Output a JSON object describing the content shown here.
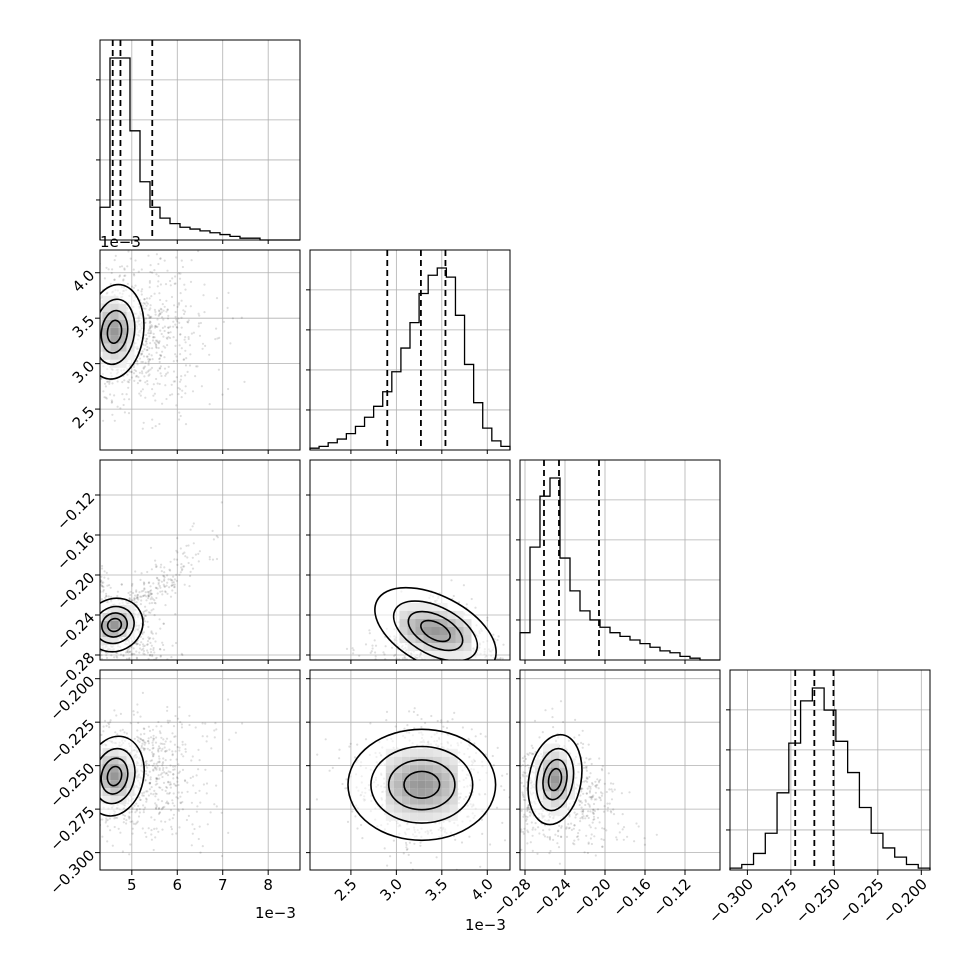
{
  "chart_data": {
    "type": "corner",
    "grid": true,
    "params": [
      {
        "range": [
          0.0043,
          0.0087
        ],
        "ticks": [
          0.005,
          0.006,
          0.007,
          0.008
        ],
        "tick_labels": [
          "5",
          "6",
          "7",
          "8"
        ],
        "offset_label": "1e−3",
        "quantiles": [
          0.00458,
          0.00475,
          0.00545
        ]
      },
      {
        "range": [
          0.00205,
          0.00425
        ],
        "ticks": [
          0.0025,
          0.003,
          0.0035,
          0.004
        ],
        "tick_labels": [
          "2.5",
          "3.0",
          "3.5",
          "4.0"
        ],
        "offset_label": "1e−3",
        "quantiles": [
          0.0029,
          0.00327,
          0.00354
        ]
      },
      {
        "range": [
          -0.285,
          -0.085
        ],
        "ticks": [
          -0.28,
          -0.24,
          -0.2,
          -0.16,
          -0.12
        ],
        "tick_labels": [
          "−0.28",
          "−0.24",
          "−0.20",
          "−0.16",
          "−0.12"
        ],
        "offset_label": "",
        "quantiles": [
          -0.261,
          -0.246,
          -0.206
        ]
      },
      {
        "range": [
          -0.31,
          -0.195
        ],
        "ticks": [
          -0.3,
          -0.275,
          -0.25,
          -0.225,
          -0.2
        ],
        "tick_labels": [
          "−0.300",
          "−0.275",
          "−0.250",
          "−0.225",
          "−0.200"
        ],
        "offset_label": "",
        "quantiles": [
          -0.2725,
          -0.2615,
          -0.2505
        ]
      }
    ],
    "histograms": [
      [
        0.18,
        1.0,
        1.0,
        0.6,
        0.32,
        0.18,
        0.12,
        0.09,
        0.07,
        0.06,
        0.05,
        0.04,
        0.03,
        0.02,
        0.01,
        0.01,
        0.0,
        0.0,
        0.0,
        0.0
      ],
      [
        0.01,
        0.02,
        0.04,
        0.06,
        0.09,
        0.13,
        0.18,
        0.24,
        0.32,
        0.43,
        0.56,
        0.7,
        0.86,
        0.96,
        1.0,
        0.95,
        0.74,
        0.47,
        0.26,
        0.12,
        0.05,
        0.02
      ],
      [
        0.15,
        0.62,
        0.9,
        1.0,
        0.56,
        0.38,
        0.27,
        0.22,
        0.18,
        0.15,
        0.13,
        0.11,
        0.09,
        0.07,
        0.05,
        0.04,
        0.02,
        0.01,
        0.0,
        0.0
      ],
      [
        0.01,
        0.03,
        0.09,
        0.2,
        0.42,
        0.69,
        0.92,
        0.99,
        0.87,
        0.7,
        0.53,
        0.34,
        0.2,
        0.12,
        0.07,
        0.03,
        0.01
      ]
    ],
    "pairs": [
      {
        "row": 1,
        "col": 0,
        "peak": [
          0.00462,
          0.00335
        ],
        "spread": [
          0.00022,
          0.00018
        ],
        "corr": -0.15,
        "scatter_sd": [
          0.0009,
          0.00038
        ],
        "scatter_corr": -0.35,
        "levels": [
          0.33,
          0.56,
          0.75,
          0.93
        ]
      },
      {
        "row": 2,
        "col": 0,
        "peak": [
          0.00462,
          -0.25
        ],
        "spread": [
          0.00022,
          0.009
        ],
        "corr": 0.55,
        "scatter_sd": [
          0.00095,
          0.038
        ],
        "scatter_corr": 0.92,
        "levels": [
          0.33,
          0.56,
          0.75,
          0.93
        ]
      },
      {
        "row": 2,
        "col": 1,
        "peak": [
          0.00343,
          -0.256
        ],
        "spread": [
          0.00025,
          0.012
        ],
        "corr": -0.55,
        "scatter_sd": [
          0.00042,
          0.03
        ],
        "scatter_corr": -0.75,
        "levels": [
          0.33,
          0.56,
          0.75,
          0.93
        ]
      },
      {
        "row": 3,
        "col": 0,
        "peak": [
          0.00462,
          -0.256
        ],
        "spread": [
          0.00022,
          0.008
        ],
        "corr": -0.25,
        "scatter_sd": [
          0.0009,
          0.017
        ],
        "scatter_corr": -0.55,
        "levels": [
          0.33,
          0.56,
          0.75,
          0.93
        ]
      },
      {
        "row": 3,
        "col": 1,
        "peak": [
          0.00328,
          -0.261
        ],
        "spread": [
          0.00028,
          0.011
        ],
        "corr": 0.0,
        "scatter_sd": [
          0.00038,
          0.017
        ],
        "scatter_corr": 0.05,
        "levels": [
          0.33,
          0.56,
          0.75,
          0.93
        ]
      },
      {
        "row": 3,
        "col": 2,
        "peak": [
          -0.25,
          -0.258
        ],
        "spread": [
          0.009,
          0.009
        ],
        "corr": -0.2,
        "scatter_sd": [
          0.032,
          0.017
        ],
        "scatter_corr": -0.55,
        "levels": [
          0.33,
          0.56,
          0.75,
          0.93
        ]
      }
    ]
  },
  "colors": {
    "axes": "#000000",
    "grid": "#b0b0b0",
    "scatter": "#000000",
    "contour": "#000000"
  }
}
